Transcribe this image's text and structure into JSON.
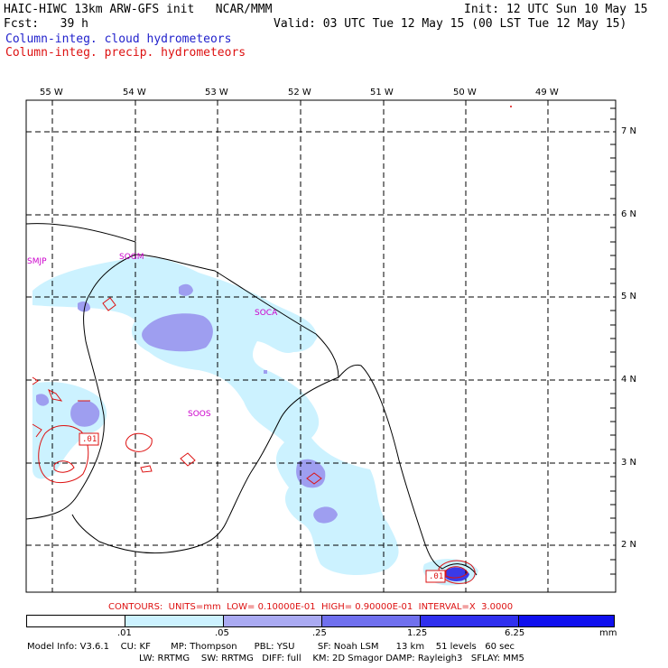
{
  "header": {
    "line1_left": "HAIC-HIWC 13km ARW-GFS init   NCAR/MMM",
    "line1_right": "Init: 12 UTC Sun 10 May 15",
    "line2_left": "Fcst:   39 h",
    "line2_right": "Valid: 03 UTC Tue 12 May 15 (00 LST Tue 12 May 15)",
    "field_cloud": "Column-integ. cloud hydrometeors",
    "field_precip": "Column-integ. precip. hydrometeors"
  },
  "map": {
    "lon_labels": [
      "55 W",
      "54 W",
      "53 W",
      "52 W",
      "51 W",
      "50 W",
      "49 W"
    ],
    "lat_labels": [
      "7 N",
      "6 N",
      "5 N",
      "4 N",
      "3 N",
      "2 N"
    ],
    "stations": [
      "SMJP",
      "SOGM",
      "SOCA",
      "SOOS"
    ],
    "contour_labels": [
      ".01",
      ".01"
    ]
  },
  "contours_note": "CONTOURS:  UNITS=mm  LOW= 0.10000E-01  HIGH= 0.90000E-01  INTERVAL=X  3.0000",
  "colorbar": {
    "labels": [
      ".01",
      ".05",
      ".25",
      "1.25",
      "6.25"
    ],
    "unit": "mm",
    "colors": [
      "#ffffff",
      "#ccf2ff",
      "#aaaaf2",
      "#7070ee",
      "#3030ee",
      "#1010ee"
    ]
  },
  "model_info": {
    "line1": "Model Info: V3.6.1    CU: KF       MP: Thompson      PBL: YSU        SF: Noah LSM      13 km    51 levels   60 sec",
    "line2": "LW: RRTMG    SW: RRTMG   DIFF: full    KM: 2D Smagor DAMP: Rayleigh3   SFLAY: MM5"
  }
}
